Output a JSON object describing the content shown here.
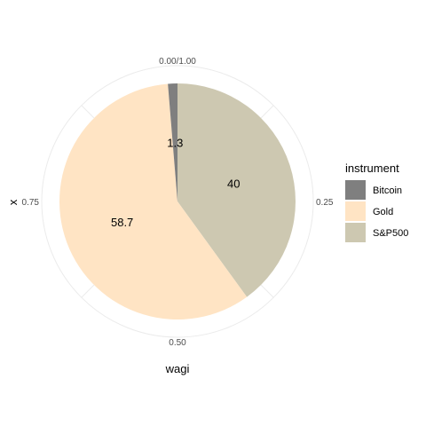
{
  "chart_data": {
    "type": "pie",
    "xlabel": "wagi",
    "ylabel": "x",
    "legend": {
      "title": "instrument",
      "position": "right"
    },
    "angle_ticks": [
      "0.00/1.00",
      "0.25",
      "0.50",
      "0.75"
    ],
    "start": "top",
    "direction": "clockwise",
    "series": [
      {
        "name": "S&P500",
        "value": 40,
        "label": "40",
        "color": "#cdc8b1"
      },
      {
        "name": "Gold",
        "value": 58.7,
        "label": "58.7",
        "color": "#ffe4c4"
      },
      {
        "name": "Bitcoin",
        "value": 1.3,
        "label": "1.3",
        "color": "#7f7f7f"
      }
    ],
    "legend_order": [
      "Bitcoin",
      "Gold",
      "S&P500"
    ],
    "grid": true
  }
}
